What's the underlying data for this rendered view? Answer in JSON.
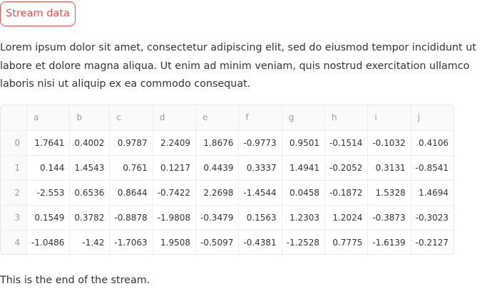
{
  "stream_button_label": "Stream data",
  "intro_text": "Lorem ipsum dolor sit amet, consectetur adipiscing elit, sed do eiusmod tempor incididunt ut labore et dolore magna aliqua. Ut enim ad minim veniam, quis nostrud exercitation ullamco laboris nisi ut aliquip ex ea commodo consequat.",
  "table": {
    "index_header": "",
    "columns": [
      "a",
      "b",
      "c",
      "d",
      "e",
      "f",
      "g",
      "h",
      "i",
      "j"
    ],
    "rows": [
      {
        "index": "0",
        "cells": [
          "1.7641",
          "0.4002",
          "0.9787",
          "2.2409",
          "1.8676",
          "-0.9773",
          "0.9501",
          "-0.1514",
          "-0.1032",
          "0.4106"
        ]
      },
      {
        "index": "1",
        "cells": [
          "0.144",
          "1.4543",
          "0.761",
          "0.1217",
          "0.4439",
          "0.3337",
          "1.4941",
          "-0.2052",
          "0.3131",
          "-0.8541"
        ]
      },
      {
        "index": "2",
        "cells": [
          "-2.553",
          "0.6536",
          "0.8644",
          "-0.7422",
          "2.2698",
          "-1.4544",
          "0.0458",
          "-0.1872",
          "1.5328",
          "1.4694"
        ]
      },
      {
        "index": "3",
        "cells": [
          "0.1549",
          "0.3782",
          "-0.8878",
          "-1.9808",
          "-0.3479",
          "0.1563",
          "1.2303",
          "1.2024",
          "-0.3873",
          "-0.3023"
        ]
      },
      {
        "index": "4",
        "cells": [
          "-1.0486",
          "-1.42",
          "-1.7063",
          "1.9508",
          "-0.5097",
          "-0.4381",
          "-1.2528",
          "0.7775",
          "-1.6139",
          "-0.2127"
        ]
      }
    ]
  },
  "end_text": "This is the end of the stream."
}
